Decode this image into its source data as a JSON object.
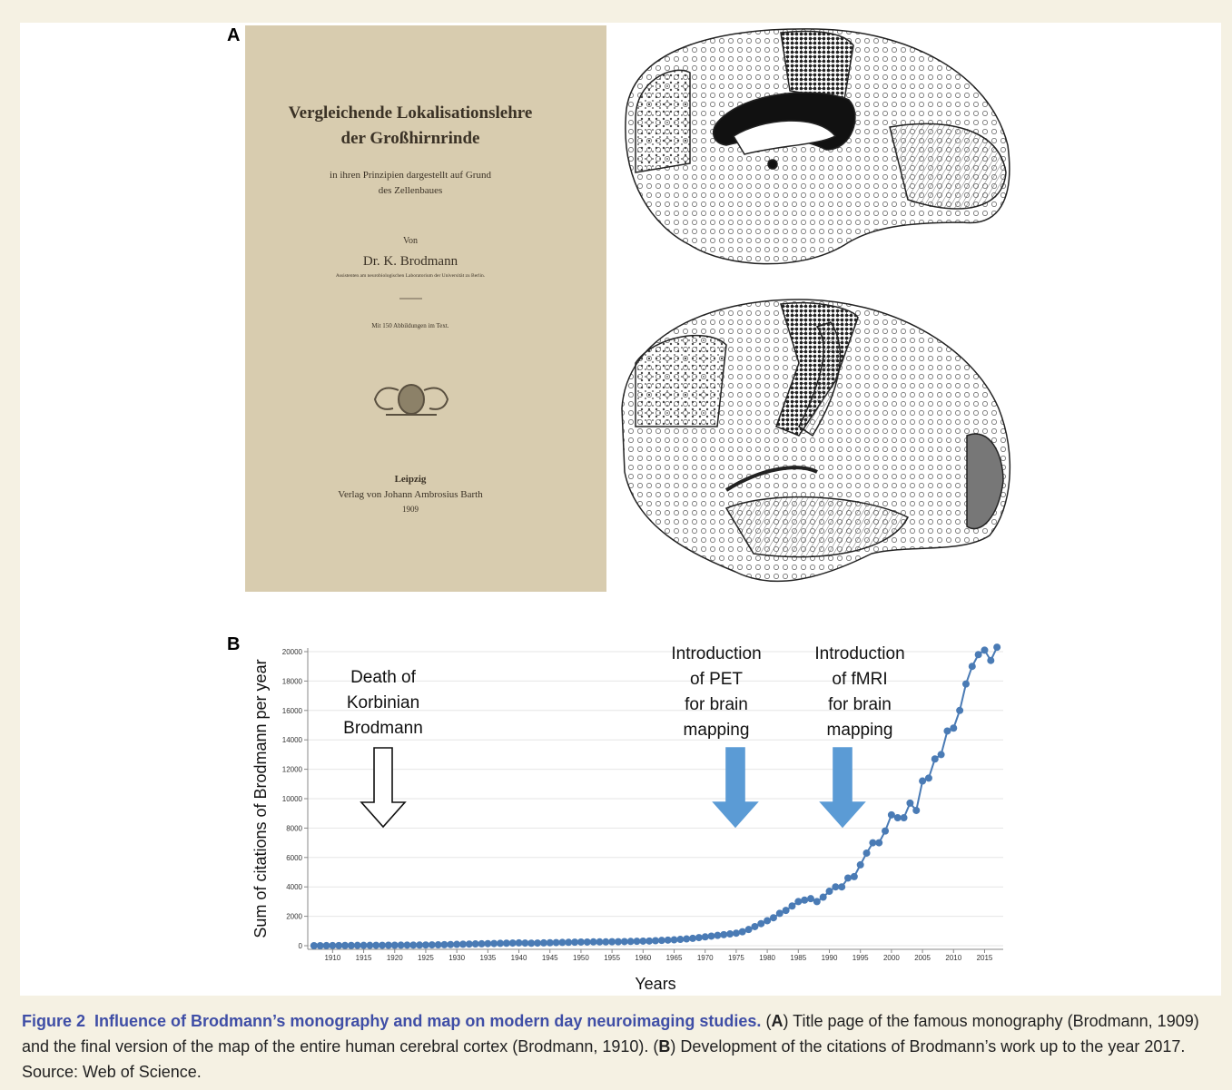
{
  "panel_labels": [
    "A",
    "B"
  ],
  "book": {
    "title_lines": [
      "Vergleichende Lokalisationslehre",
      "der Großhirnrinde"
    ],
    "subtitle_lines": [
      "in ihren Prinzipien dargestellt auf Grund",
      "des Zellenbaues"
    ],
    "von": "Von",
    "author": "Dr. K. Brodmann",
    "affiliation": "Assistenten am neurobiologischen Laboratorium der Universität zu Berlin.",
    "illustrations": "Mit 150 Abbildungen im Text.",
    "city": "Leipzig",
    "publisher": "Verlag von Johann Ambrosius Barth",
    "year": "1909"
  },
  "chart_data": {
    "type": "line",
    "ylabel": "Sum of citations of Brodmann per year",
    "xlabel": "Years",
    "x": [
      1907,
      1908,
      1909,
      1910,
      1911,
      1912,
      1913,
      1914,
      1915,
      1916,
      1917,
      1918,
      1919,
      1920,
      1921,
      1922,
      1923,
      1924,
      1925,
      1926,
      1927,
      1928,
      1929,
      1930,
      1931,
      1932,
      1933,
      1934,
      1935,
      1936,
      1937,
      1938,
      1939,
      1940,
      1941,
      1942,
      1943,
      1944,
      1945,
      1946,
      1947,
      1948,
      1949,
      1950,
      1951,
      1952,
      1953,
      1954,
      1955,
      1956,
      1957,
      1958,
      1959,
      1960,
      1961,
      1962,
      1963,
      1964,
      1965,
      1966,
      1967,
      1968,
      1969,
      1970,
      1971,
      1972,
      1973,
      1974,
      1975,
      1976,
      1977,
      1978,
      1979,
      1980,
      1981,
      1982,
      1983,
      1984,
      1985,
      1986,
      1987,
      1988,
      1989,
      1990,
      1991,
      1992,
      1993,
      1994,
      1995,
      1996,
      1997,
      1998,
      1999,
      2000,
      2001,
      2002,
      2003,
      2004,
      2005,
      2006,
      2007,
      2008,
      2009,
      2010,
      2011,
      2012,
      2013,
      2014,
      2015,
      2016,
      2017
    ],
    "series": [
      {
        "color": "#4a7bb5",
        "values": [
          0,
          0,
          5,
          10,
          10,
          15,
          15,
          20,
          20,
          20,
          25,
          25,
          30,
          30,
          35,
          40,
          40,
          45,
          50,
          55,
          60,
          70,
          80,
          90,
          100,
          110,
          120,
          130,
          140,
          150,
          160,
          170,
          180,
          190,
          180,
          170,
          180,
          190,
          200,
          210,
          220,
          230,
          240,
          250,
          250,
          260,
          260,
          260,
          270,
          270,
          280,
          290,
          300,
          310,
          320,
          340,
          360,
          380,
          400,
          430,
          460,
          500,
          550,
          600,
          650,
          700,
          750,
          800,
          850,
          950,
          1100,
          1300,
          1500,
          1700,
          1900,
          2200,
          2400,
          2700,
          3000,
          3100,
          3200,
          3000,
          3300,
          3700,
          4000,
          4000,
          4600,
          4700,
          5500,
          6300,
          7000,
          7000,
          7800,
          8900,
          8700,
          8700,
          9700,
          9200,
          11200,
          11400,
          12700,
          13000,
          14600,
          14800,
          16000,
          17800,
          19000,
          19800,
          20100,
          19400,
          20300
        ]
      }
    ],
    "xlim": [
      1906,
      2018
    ],
    "ylim": [
      0,
      20000
    ],
    "xticks": [
      1910,
      1915,
      1920,
      1925,
      1930,
      1935,
      1940,
      1945,
      1950,
      1955,
      1960,
      1965,
      1970,
      1975,
      1980,
      1985,
      1990,
      1995,
      2000,
      2005,
      2010,
      2015
    ],
    "yticks": [
      0,
      2000,
      4000,
      6000,
      8000,
      10000,
      12000,
      14000,
      16000,
      18000,
      20000
    ],
    "grid": true,
    "annotations": [
      {
        "lines": [
          "Death of",
          "Korbinian",
          "Brodmann"
        ],
        "color": "#ffffff"
      },
      {
        "lines": [
          "Introduction",
          "of PET",
          "for brain",
          "mapping"
        ],
        "color": "#5b9bd5"
      },
      {
        "lines": [
          "Introduction",
          "of fMRI",
          "for brain",
          "mapping"
        ],
        "color": "#5b9bd5"
      }
    ]
  },
  "caption": {
    "label": "Figure 2",
    "title": "Influence of Brodmann’s monography and map on modern day neuroimaging studies.",
    "parts": [
      "(",
      "A",
      ") Title page of the famous monography (Brodmann, 1909) and the final version of the map of the entire human cerebral cortex (Brodmann, 1910). (",
      "B",
      ") Development of the citations of Brodmann’s work up to the year 2017. Source: Web of Science."
    ]
  }
}
